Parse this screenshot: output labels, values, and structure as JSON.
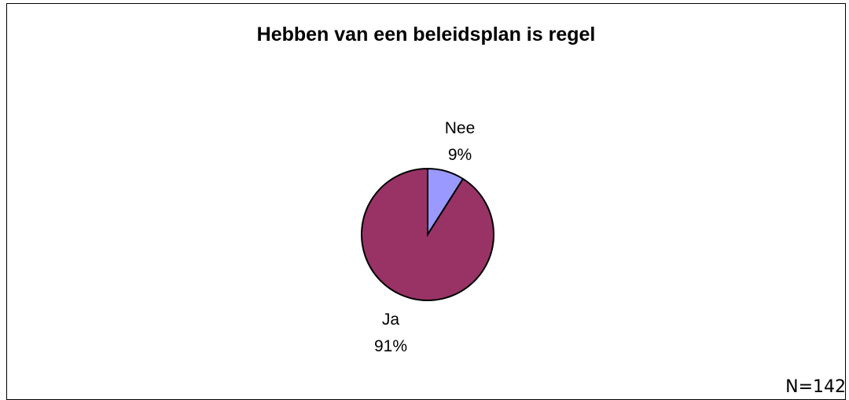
{
  "chart_data": {
    "type": "pie",
    "title": "Hebben van een beleidsplan is regel",
    "slices": [
      {
        "label": "Nee",
        "value": 9,
        "value_label": "9%",
        "color": "#9999ff"
      },
      {
        "label": "Ja",
        "value": 91,
        "value_label": "91%",
        "color": "#993366"
      }
    ],
    "note": "N=142"
  }
}
